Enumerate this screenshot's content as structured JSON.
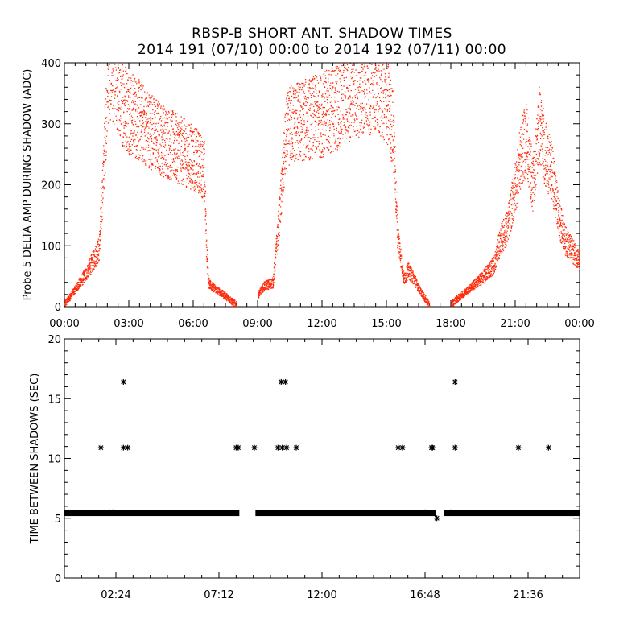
{
  "title": {
    "line1": "RBSP-B SHORT ANT. SHADOW TIMES",
    "line2": "2014 191 (07/10) 00:00 to 2014 192 (07/11) 00:00"
  },
  "colors": {
    "top_series": "#ff2a0a",
    "bottom_series": "#000000",
    "axes": "#000000"
  },
  "chart_data": [
    {
      "type": "scatter",
      "ylabel": "Probe 5 DELTA AMP DURING SHADOW (ADC)",
      "xlabel": "",
      "xlim": [
        0,
        24
      ],
      "ylim": [
        0,
        400
      ],
      "x_ticks": [
        {
          "value": 0,
          "label": "00:00"
        },
        {
          "value": 3,
          "label": "03:00"
        },
        {
          "value": 6,
          "label": "06:00"
        },
        {
          "value": 9,
          "label": "09:00"
        },
        {
          "value": 12,
          "label": "12:00"
        },
        {
          "value": 15,
          "label": "15:00"
        },
        {
          "value": 18,
          "label": "18:00"
        },
        {
          "value": 21,
          "label": "21:00"
        },
        {
          "value": 24,
          "label": "00:00"
        }
      ],
      "y_ticks": [
        {
          "value": 0,
          "label": "0"
        },
        {
          "value": 100,
          "label": "100"
        },
        {
          "value": 200,
          "label": "200"
        },
        {
          "value": 300,
          "label": "300"
        },
        {
          "value": 400,
          "label": "400"
        }
      ],
      "series": [
        {
          "marker": "dot",
          "segments": [
            {
              "x": [
                0.0,
                0.5,
                1.0,
                1.3,
                1.6,
                1.8,
                2.0,
                2.2,
                2.5,
                3.0,
                3.5,
                4.0,
                4.5,
                5.0,
                5.5,
                6.0,
                6.3,
                6.5,
                6.6,
                6.7,
                7.0,
                7.5,
                8.0
              ],
              "y": [
                5,
                30,
                55,
                75,
                95,
                220,
                380,
                395,
                350,
                320,
                305,
                290,
                275,
                265,
                255,
                245,
                235,
                225,
                100,
                40,
                30,
                18,
                3
              ]
            },
            {
              "x": [
                9.0,
                9.3,
                9.7,
                10.0,
                10.3,
                10.5,
                11.0,
                11.5,
                12.0,
                12.5,
                13.0,
                13.5,
                14.0,
                14.5,
                15.0,
                15.3,
                15.5,
                15.8,
                16.0,
                16.3,
                16.5,
                17.0
              ],
              "y": [
                20,
                35,
                40,
                150,
                280,
                300,
                305,
                310,
                315,
                325,
                340,
                355,
                360,
                365,
                340,
                290,
                120,
                45,
                60,
                45,
                30,
                2
              ]
            },
            {
              "x": [
                18.0,
                18.5,
                19.0,
                19.5,
                20.0,
                20.3,
                20.6,
                20.9,
                21.2,
                21.5,
                21.8,
                22.1,
                22.4,
                22.7,
                23.0,
                23.3,
                23.6,
                24.0
              ],
              "y": [
                5,
                20,
                35,
                50,
                70,
                110,
                130,
                180,
                240,
                280,
                200,
                300,
                250,
                220,
                150,
                110,
                95,
                75
              ]
            }
          ]
        }
      ]
    },
    {
      "type": "scatter",
      "ylabel": "TIME BETWEEN SHADOWS (SEC)",
      "xlabel": "",
      "xlim": [
        0,
        24
      ],
      "ylim": [
        0,
        20
      ],
      "x_ticks": [
        {
          "value": 2.4,
          "label": "02:24"
        },
        {
          "value": 7.2,
          "label": "07:12"
        },
        {
          "value": 12.0,
          "label": "12:00"
        },
        {
          "value": 16.8,
          "label": "16:48"
        },
        {
          "value": 21.6,
          "label": "21:36"
        }
      ],
      "y_ticks": [
        {
          "value": 0,
          "label": "0"
        },
        {
          "value": 5,
          "label": "5"
        },
        {
          "value": 10,
          "label": "10"
        },
        {
          "value": 15,
          "label": "15"
        },
        {
          "value": 20,
          "label": "20"
        }
      ],
      "series": [
        {
          "marker": "asterisk",
          "baseline_value": 5.45,
          "baseline_ranges": [
            [
              0.0,
              8.15
            ],
            [
              8.9,
              17.3
            ],
            [
              17.7,
              24.0
            ]
          ],
          "points": [
            {
              "x": 1.7,
              "y": 10.9
            },
            {
              "x": 2.1,
              "y": 5.5
            },
            {
              "x": 2.25,
              "y": 5.5
            },
            {
              "x": 2.75,
              "y": 16.4
            },
            {
              "x": 2.75,
              "y": 10.9
            },
            {
              "x": 2.95,
              "y": 10.9
            },
            {
              "x": 8.0,
              "y": 10.9
            },
            {
              "x": 8.1,
              "y": 10.9
            },
            {
              "x": 8.85,
              "y": 10.9
            },
            {
              "x": 9.95,
              "y": 10.9
            },
            {
              "x": 10.1,
              "y": 16.4
            },
            {
              "x": 10.15,
              "y": 10.9
            },
            {
              "x": 10.3,
              "y": 16.4
            },
            {
              "x": 10.35,
              "y": 10.9
            },
            {
              "x": 10.8,
              "y": 10.9
            },
            {
              "x": 15.55,
              "y": 10.9
            },
            {
              "x": 15.75,
              "y": 10.9
            },
            {
              "x": 16.8,
              "y": 5.5
            },
            {
              "x": 17.1,
              "y": 10.9
            },
            {
              "x": 17.15,
              "y": 10.9
            },
            {
              "x": 17.35,
              "y": 5.0
            },
            {
              "x": 18.0,
              "y": 5.5
            },
            {
              "x": 18.2,
              "y": 16.4
            },
            {
              "x": 18.2,
              "y": 10.9
            },
            {
              "x": 21.15,
              "y": 10.9
            },
            {
              "x": 22.55,
              "y": 10.9
            }
          ]
        }
      ]
    }
  ]
}
